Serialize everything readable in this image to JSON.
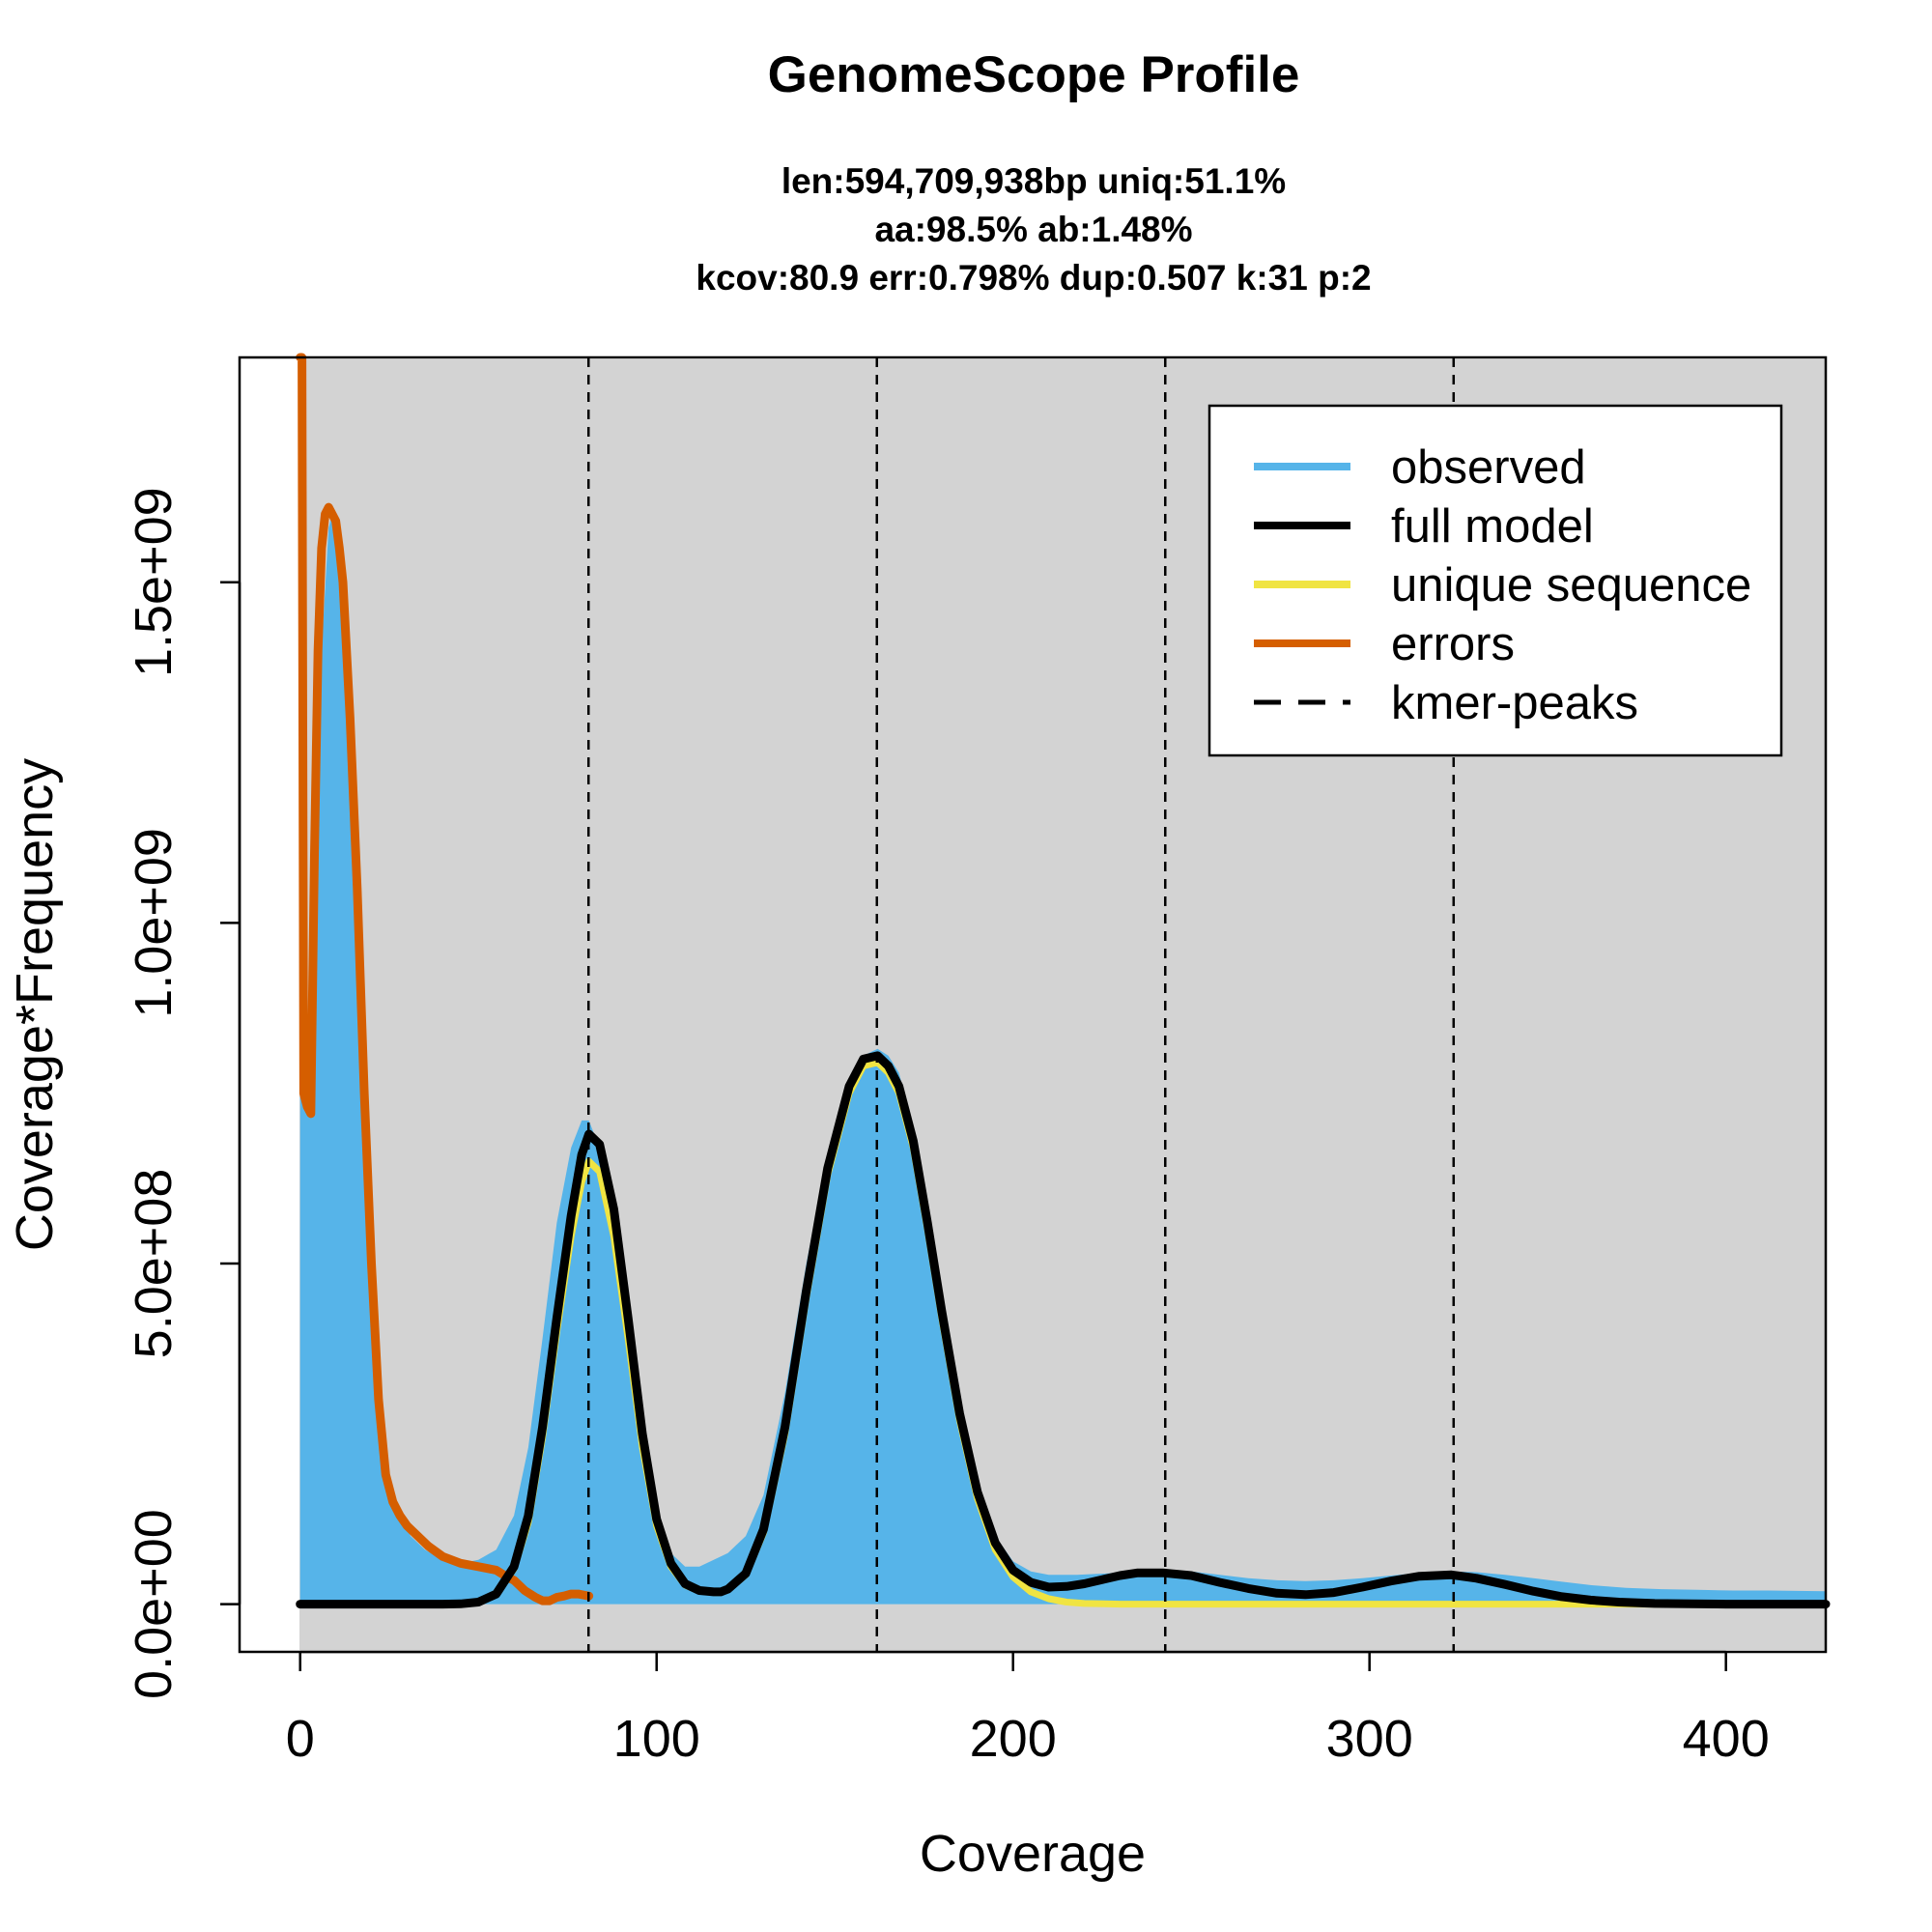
{
  "chart_data": {
    "type": "area",
    "title": "GenomeScope Profile",
    "subtitle_lines": [
      "len:594,709,938bp uniq:51.1%",
      "aa:98.5% ab:1.48%",
      "kcov:80.9 err:0.798%  dup:0.507  k:31 p:2"
    ],
    "xlabel": "Coverage",
    "ylabel": "Coverage*Frequency",
    "xlim": [
      -17,
      428
    ],
    "ylim": [
      -70000000.0,
      1830000000.0
    ],
    "x_ticks": [
      0,
      100,
      200,
      300,
      400
    ],
    "x_tick_labels": [
      "0",
      "100",
      "200",
      "300",
      "400"
    ],
    "y_ticks": [
      0,
      500000000,
      1000000000,
      1500000000
    ],
    "y_tick_labels": [
      "0.0e+00",
      "5.0e+08",
      "1.0e+09",
      "1.5e+09"
    ],
    "background": "#d3d3d3",
    "grid": false,
    "legend_position": "top-right",
    "kmer_peaks": [
      80.9,
      161.8,
      242.7,
      323.6
    ],
    "legend": [
      {
        "label": "observed",
        "color": "#56b4e9",
        "style": "solid"
      },
      {
        "label": "full model",
        "color": "#000000",
        "style": "solid"
      },
      {
        "label": "unique sequence",
        "color": "#f0e442",
        "style": "solid"
      },
      {
        "label": "errors",
        "color": "#d55e00",
        "style": "solid"
      },
      {
        "label": "kmer-peaks",
        "color": "#000000",
        "style": "dashed"
      }
    ],
    "series": [
      {
        "name": "observed",
        "color": "#56b4e9",
        "style": "fill",
        "x": [
          0,
          1,
          2,
          3,
          4,
          6,
          8,
          9,
          10,
          12,
          14,
          16,
          18,
          20,
          22,
          25,
          28,
          31,
          35,
          40,
          45,
          50,
          55,
          60,
          64,
          68,
          72,
          76,
          79,
          81,
          84,
          88,
          92,
          96,
          100,
          104,
          108,
          112,
          116,
          120,
          125,
          130,
          136,
          142,
          148,
          154,
          158,
          162,
          165,
          168,
          172,
          176,
          180,
          185,
          190,
          195,
          200,
          205,
          210,
          218,
          226,
          234,
          242,
          250,
          258,
          266,
          274,
          282,
          290,
          298,
          306,
          314,
          322,
          330,
          338,
          346,
          354,
          362,
          372,
          382,
          392,
          402,
          412,
          428
        ],
        "y": [
          1840000000.0,
          1840000000.0,
          750000000.0,
          720000000.0,
          1050000000.0,
          1400000000.0,
          1580000000.0,
          1600000000.0,
          1590000000.0,
          1500000000.0,
          1300000000.0,
          1050000000.0,
          750000000.0,
          500000000.0,
          300000000.0,
          180000000.0,
          130000000.0,
          100000000.0,
          80000000.0,
          65000000.0,
          60000000.0,
          65000000.0,
          80000000.0,
          130000000.0,
          230000000.0,
          390000000.0,
          560000000.0,
          670000000.0,
          710000000.0,
          710000000.0,
          670000000.0,
          560000000.0,
          390000000.0,
          230000000.0,
          130000000.0,
          75000000.0,
          55000000.0,
          55000000.0,
          65000000.0,
          75000000.0,
          100000000.0,
          160000000.0,
          310000000.0,
          500000000.0,
          660000000.0,
          770000000.0,
          805000000.0,
          815000000.0,
          805000000.0,
          780000000.0,
          700000000.0,
          580000000.0,
          440000000.0,
          290000000.0,
          170000000.0,
          100000000.0,
          63000000.0,
          48000000.0,
          43000000.0,
          43000000.0,
          45000000.0,
          48000000.0,
          50000000.0,
          48000000.0,
          43000000.0,
          38000000.0,
          35000000.0,
          34000000.0,
          35000000.0,
          38000000.0,
          42000000.0,
          46000000.0,
          48000000.0,
          47000000.0,
          43000000.0,
          38000000.0,
          33000000.0,
          28000000.0,
          24000000.0,
          22000000.0,
          21000000.0,
          20000000.0,
          20000000.0,
          19000000.0
        ]
      },
      {
        "name": "full model",
        "color": "#000000",
        "style": "line",
        "x": [
          0,
          20,
          30,
          40,
          45,
          50,
          55,
          60,
          64,
          68,
          72,
          76,
          79,
          81,
          84,
          88,
          92,
          96,
          100,
          104,
          108,
          112,
          116,
          118,
          120,
          125,
          130,
          136,
          142,
          148,
          154,
          158,
          162,
          165,
          168,
          172,
          176,
          180,
          185,
          190,
          195,
          200,
          205,
          210,
          215,
          220,
          225,
          230,
          235,
          242,
          250,
          258,
          266,
          274,
          282,
          290,
          298,
          306,
          314,
          323,
          330,
          338,
          346,
          354,
          362,
          370,
          380,
          390,
          400,
          410,
          428
        ],
        "y": [
          0,
          0,
          0,
          0,
          500000.0,
          3000000.0,
          15000000.0,
          55000000.0,
          130000000.0,
          260000000.0,
          420000000.0,
          570000000.0,
          660000000.0,
          690000000.0,
          675000000.0,
          580000000.0,
          420000000.0,
          250000000.0,
          125000000.0,
          60000000.0,
          30000000.0,
          20000000.0,
          18000000.0,
          18000000.0,
          22000000.0,
          45000000.0,
          110000000.0,
          260000000.0,
          460000000.0,
          640000000.0,
          760000000.0,
          800000000.0,
          805000000.0,
          790000000.0,
          760000000.0,
          680000000.0,
          560000000.0,
          430000000.0,
          280000000.0,
          165000000.0,
          90000000.0,
          50000000.0,
          32000000.0,
          25000000.0,
          26000000.0,
          30000000.0,
          36000000.0,
          42000000.0,
          46000000.0,
          46000000.0,
          42000000.0,
          32000000.0,
          23000000.0,
          16000000.0,
          14000000.0,
          17000000.0,
          25000000.0,
          34000000.0,
          41000000.0,
          43000000.0,
          38000000.0,
          29000000.0,
          19000000.0,
          11000000.0,
          6000000.0,
          3000000.0,
          1000000.0,
          500000.0,
          0,
          0,
          0
        ]
      },
      {
        "name": "unique sequence",
        "color": "#f0e442",
        "style": "line",
        "x": [
          0,
          20,
          30,
          40,
          45,
          50,
          55,
          60,
          64,
          68,
          72,
          76,
          79,
          81,
          84,
          88,
          92,
          96,
          100,
          104,
          108,
          112,
          116,
          118,
          120,
          125,
          130,
          136,
          142,
          148,
          154,
          158,
          162,
          165,
          168,
          172,
          176,
          180,
          185,
          190,
          195,
          200,
          205,
          210,
          215,
          220,
          230,
          242,
          260,
          280,
          300,
          323,
          350,
          380,
          428
        ],
        "y": [
          0,
          0,
          0,
          0,
          500000.0,
          3000000.0,
          14000000.0,
          52000000.0,
          120000000.0,
          245000000.0,
          400000000.0,
          540000000.0,
          620000000.0,
          650000000.0,
          635000000.0,
          540000000.0,
          390000000.0,
          230000000.0,
          115000000.0,
          55000000.0,
          28000000.0,
          19000000.0,
          17000000.0,
          17000000.0,
          21000000.0,
          43000000.0,
          105000000.0,
          250000000.0,
          450000000.0,
          630000000.0,
          750000000.0,
          790000000.0,
          795000000.0,
          780000000.0,
          750000000.0,
          670000000.0,
          550000000.0,
          420000000.0,
          270000000.0,
          155000000.0,
          80000000.0,
          40000000.0,
          18000000.0,
          8000000.0,
          3000000.0,
          1000000.0,
          0,
          0,
          0,
          0,
          0,
          0,
          0,
          0,
          0
        ]
      },
      {
        "name": "errors",
        "color": "#d55e00",
        "style": "line",
        "x": [
          0,
          0.5,
          1,
          2,
          3,
          4,
          5,
          6,
          7,
          8,
          9,
          10,
          11,
          12,
          14,
          16,
          18,
          20,
          22,
          24,
          26,
          28,
          30,
          33,
          36,
          40,
          45,
          50,
          55,
          58,
          60,
          63,
          66,
          68,
          70,
          72,
          74,
          76,
          78,
          80,
          81
        ],
        "y": [
          1840000000.0,
          1840000000.0,
          750000000.0,
          730000000.0,
          720000000.0,
          1100000000.0,
          1400000000.0,
          1550000000.0,
          1600000000.0,
          1610000000.0,
          1600000000.0,
          1590000000.0,
          1550000000.0,
          1500000000.0,
          1300000000.0,
          1050000000.0,
          750000000.0,
          500000000.0,
          300000000.0,
          190000000.0,
          150000000.0,
          130000000.0,
          115000000.0,
          100000000.0,
          85000000.0,
          70000000.0,
          60000000.0,
          55000000.0,
          50000000.0,
          40000000.0,
          35000000.0,
          20000000.0,
          10000000.0,
          5000000.0,
          5000000.0,
          10000000.0,
          12000000.0,
          15000000.0,
          15000000.0,
          13000000.0,
          12000000.0
        ]
      }
    ]
  }
}
